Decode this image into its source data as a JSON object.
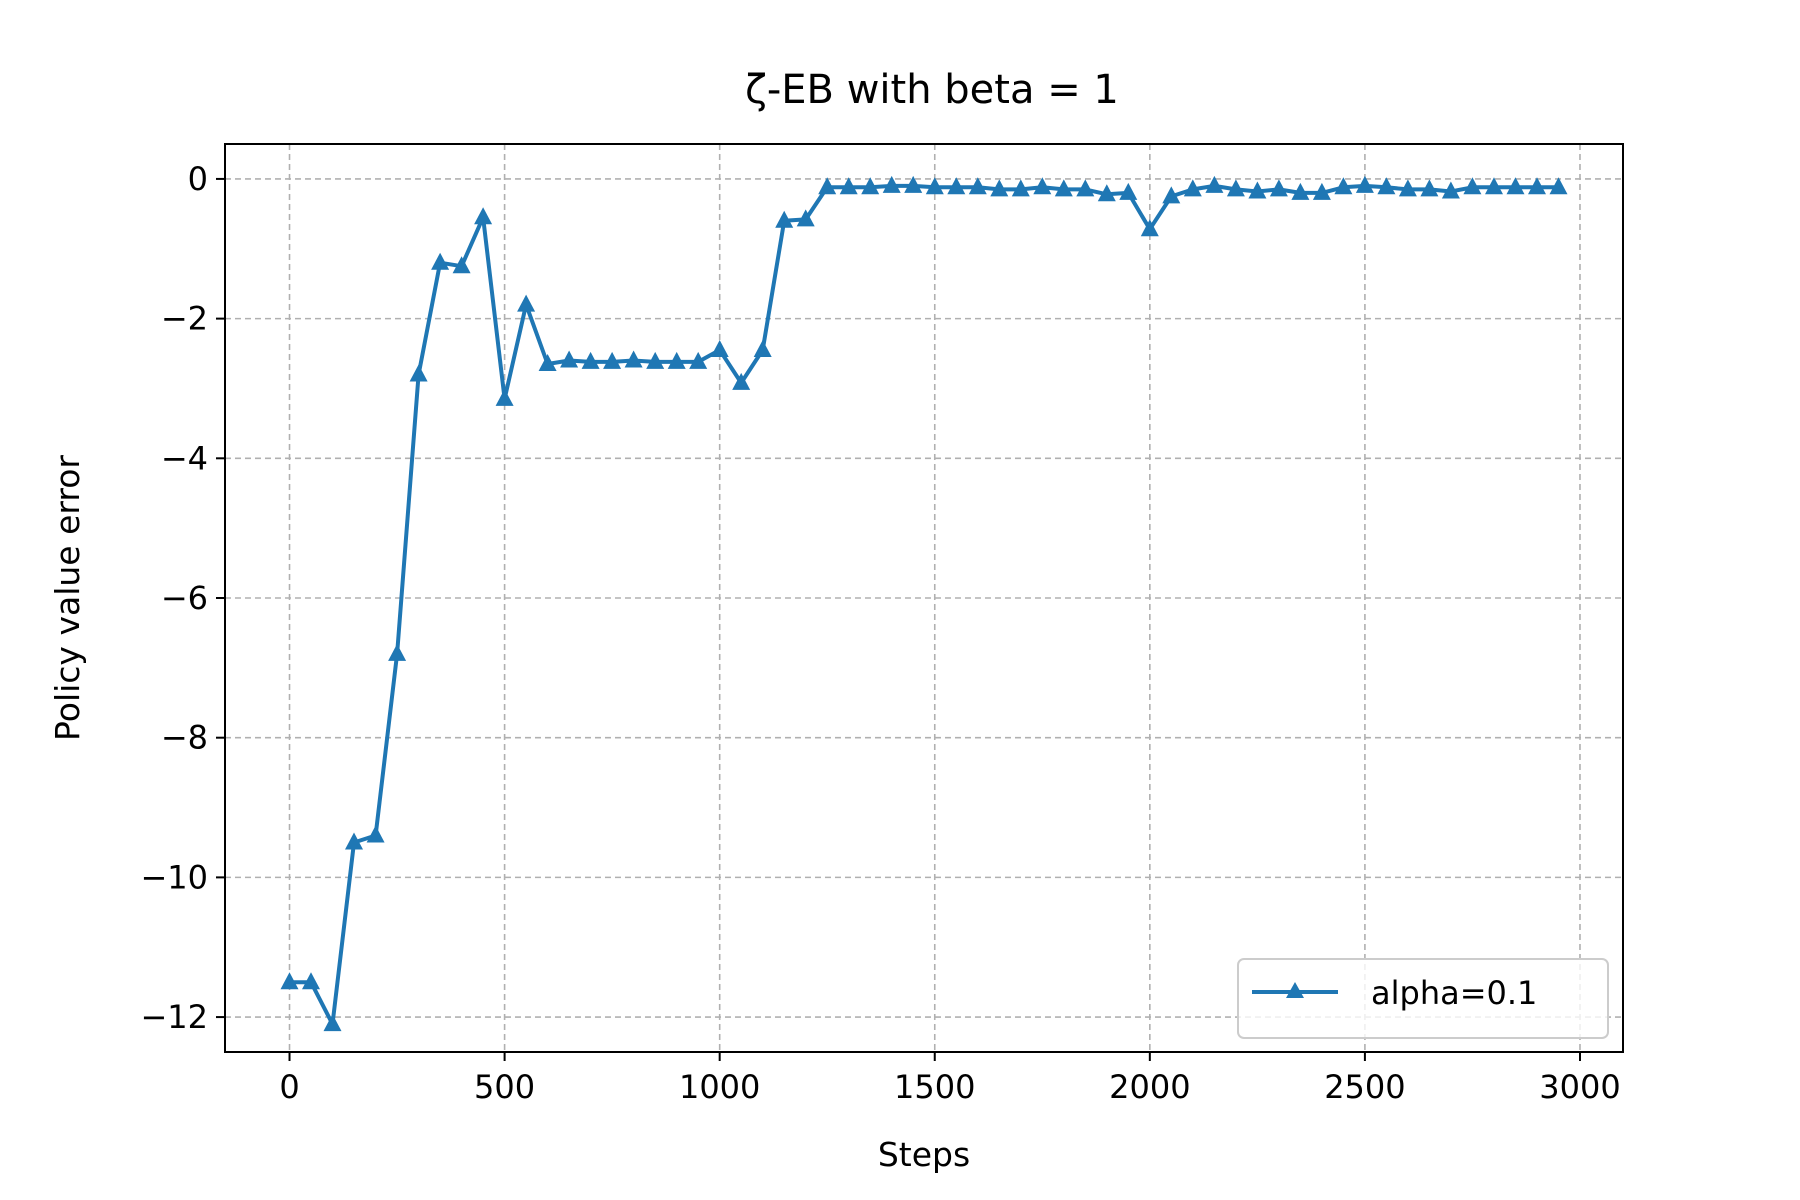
{
  "chart_data": {
    "type": "line",
    "title": "ζ-EB with beta = 1",
    "xlabel": "Steps",
    "ylabel": "Policy value error",
    "xlim": [
      -150,
      3100
    ],
    "ylim": [
      -12.5,
      0.5
    ],
    "xticks": [
      0,
      500,
      1000,
      1500,
      2000,
      2500,
      3000
    ],
    "yticks": [
      0,
      -2,
      -4,
      -6,
      -8,
      -10,
      -12
    ],
    "xtick_labels": [
      "0",
      "500",
      "1000",
      "1500",
      "2000",
      "2500",
      "3000"
    ],
    "ytick_labels": [
      "0",
      "−2",
      "−4",
      "−6",
      "−8",
      "−10",
      "−12"
    ],
    "grid": true,
    "legend_position": "lower-right",
    "series": [
      {
        "name": "alpha=0.1",
        "color": "#1f77b4",
        "marker": "triangle-up",
        "x": [
          0,
          50,
          100,
          150,
          200,
          250,
          300,
          350,
          400,
          450,
          500,
          550,
          600,
          650,
          700,
          750,
          800,
          850,
          900,
          950,
          1000,
          1050,
          1100,
          1150,
          1200,
          1250,
          1300,
          1350,
          1400,
          1450,
          1500,
          1550,
          1600,
          1650,
          1700,
          1750,
          1800,
          1850,
          1900,
          1950,
          2000,
          2050,
          2100,
          2150,
          2200,
          2250,
          2300,
          2350,
          2400,
          2450,
          2500,
          2550,
          2600,
          2650,
          2700,
          2750,
          2800,
          2850,
          2900,
          2950
        ],
        "y": [
          -11.5,
          -11.5,
          -12.1,
          -9.5,
          -9.4,
          -6.8,
          -2.8,
          -1.2,
          -1.25,
          -0.55,
          -3.15,
          -1.8,
          -2.65,
          -2.6,
          -2.62,
          -2.62,
          -2.6,
          -2.62,
          -2.62,
          -2.62,
          -2.45,
          -2.92,
          -2.45,
          -0.6,
          -0.58,
          -0.12,
          -0.12,
          -0.12,
          -0.1,
          -0.1,
          -0.12,
          -0.12,
          -0.12,
          -0.15,
          -0.15,
          -0.12,
          -0.15,
          -0.15,
          -0.22,
          -0.2,
          -0.72,
          -0.25,
          -0.15,
          -0.1,
          -0.15,
          -0.18,
          -0.15,
          -0.2,
          -0.2,
          -0.12,
          -0.1,
          -0.12,
          -0.15,
          -0.15,
          -0.18,
          -0.12,
          -0.12,
          -0.12,
          -0.12,
          -0.12
        ]
      }
    ]
  }
}
